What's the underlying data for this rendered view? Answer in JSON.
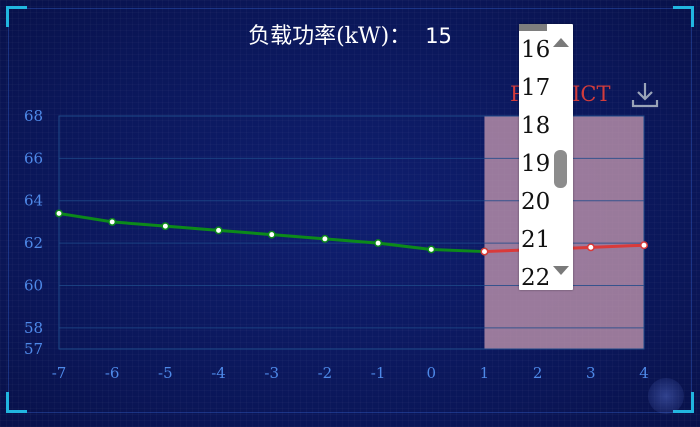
{
  "header": {
    "title_label": "负载功率(kW)：",
    "value": "15"
  },
  "predict_label": "PREDICT",
  "icons": {
    "download": "download-icon",
    "scroll_up": "triangle-up-icon",
    "scroll_down": "triangle-down-icon"
  },
  "colors": {
    "history_line": "#0c8a1a",
    "predict_line": "#d93a3a",
    "predict_region": "#c99bb0",
    "axis": "#4e89e8"
  },
  "dropdown": {
    "options": [
      "16",
      "17",
      "18",
      "19",
      "20",
      "21",
      "22"
    ]
  },
  "chart_data": {
    "type": "line",
    "xlim": [
      -7,
      4
    ],
    "ylim": [
      57,
      68
    ],
    "x_ticks": [
      "-7",
      "-6",
      "-5",
      "-4",
      "-3",
      "-2",
      "-1",
      "0",
      "1",
      "2",
      "3",
      "4"
    ],
    "y_ticks": [
      "57",
      "58",
      "60",
      "62",
      "64",
      "66",
      "68"
    ],
    "series": [
      {
        "x": [
          -7,
          -6,
          -5,
          -4,
          -3,
          -2,
          -1,
          0,
          1
        ],
        "y": [
          63.4,
          63.0,
          62.8,
          62.6,
          62.4,
          62.2,
          62.0,
          61.7,
          61.6
        ]
      },
      {
        "x": [
          1,
          2,
          3,
          4
        ],
        "y": [
          61.6,
          61.7,
          61.8,
          61.9
        ]
      }
    ],
    "predict_region": [
      1,
      4
    ],
    "grid": true
  }
}
